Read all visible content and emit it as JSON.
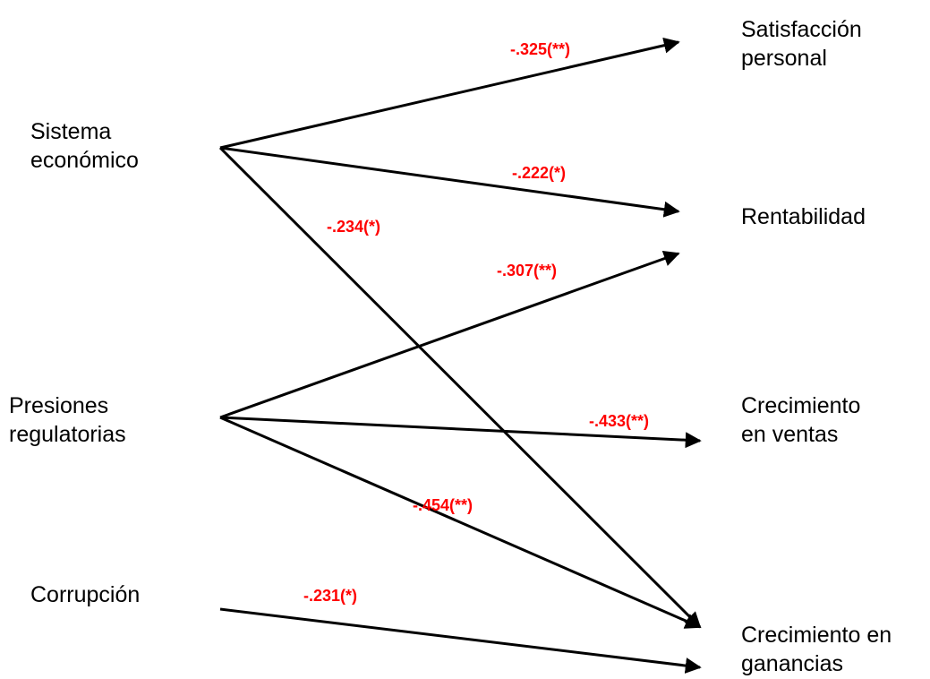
{
  "colors": {
    "edge": "#000000",
    "coefficient": "#ff0000",
    "text": "#000000"
  },
  "sources": [
    {
      "id": "sistema",
      "lines": [
        "Sistema",
        "económico"
      ]
    },
    {
      "id": "presiones",
      "lines": [
        "Presiones",
        "regulatorias"
      ]
    },
    {
      "id": "corrupcion",
      "lines": [
        "Corrupción"
      ]
    }
  ],
  "targets": [
    {
      "id": "satisfaccion",
      "lines": [
        "Satisfacción",
        "personal"
      ]
    },
    {
      "id": "rentabilidad",
      "lines": [
        "Rentabilidad"
      ]
    },
    {
      "id": "ventas",
      "lines": [
        "Crecimiento",
        "en ventas"
      ]
    },
    {
      "id": "ganancias",
      "lines": [
        "Crecimiento en",
        "ganancias"
      ]
    }
  ],
  "edges": [
    {
      "from": "sistema",
      "to": "satisfaccion",
      "coefficient": "-.325(**)"
    },
    {
      "from": "sistema",
      "to": "rentabilidad",
      "coefficient": "-.222(*)"
    },
    {
      "from": "sistema",
      "to": "ganancias",
      "coefficient": "-.234(*)"
    },
    {
      "from": "presiones",
      "to": "rentabilidad",
      "coefficient": "-.307(**)"
    },
    {
      "from": "presiones",
      "to": "ventas",
      "coefficient": "-.433(**)"
    },
    {
      "from": "presiones",
      "to": "ganancias",
      "coefficient": "-.454(**)"
    },
    {
      "from": "corrupcion",
      "to": "ganancias",
      "coefficient": "-.231(*)"
    }
  ]
}
